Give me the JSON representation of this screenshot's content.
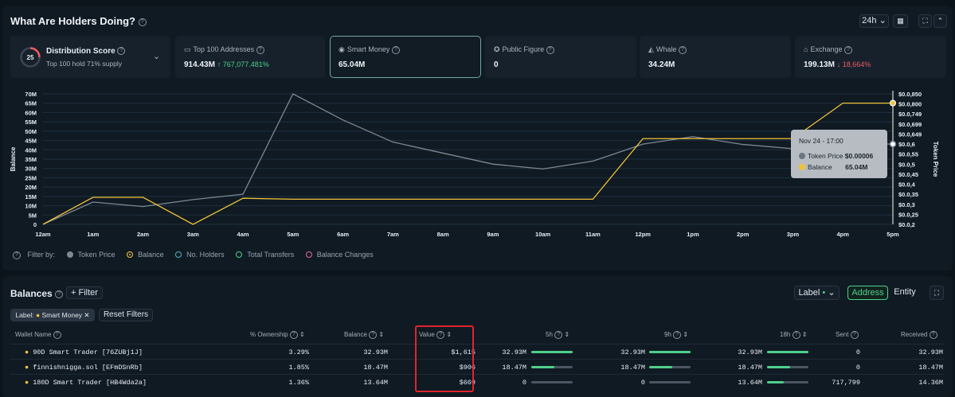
{
  "header": {
    "title": "What Are Holders Doing?",
    "interval": "24h"
  },
  "cards": [
    {
      "label": "Distribution Score",
      "sub": "Top 100 hold 71% supply",
      "score": "25"
    },
    {
      "label": "Top 100 Addresses",
      "value": "914.43M",
      "delta": "↑ 767,077.481%"
    },
    {
      "label": "Smart Money",
      "value": "65.04M"
    },
    {
      "label": "Public Figure",
      "value": "0"
    },
    {
      "label": "Whale",
      "value": "34.24M"
    },
    {
      "label": "Exchange",
      "value": "199.13M",
      "delta": "↓ 18,664%"
    }
  ],
  "chart_data": {
    "type": "line",
    "x": [
      "12am",
      "1am",
      "2am",
      "3am",
      "4am",
      "5am",
      "6am",
      "7am",
      "8am",
      "9am",
      "10am",
      "11am",
      "12pm",
      "1pm",
      "2pm",
      "3pm",
      "4pm",
      "5pm"
    ],
    "series": [
      {
        "name": "Token Price",
        "axis": "right",
        "values": [
          0.2,
          0.311,
          0.2888,
          0.3233,
          0.35,
          0.85,
          0.72,
          0.61,
          0.555,
          0.5,
          0.476,
          0.515,
          0.6,
          0.637,
          0.598,
          0.577,
          0.6,
          0.6
        ]
      },
      {
        "name": "Balance",
        "axis": "left",
        "values": [
          0,
          14.5,
          14.5,
          0,
          14,
          13.5,
          13.5,
          13.5,
          13.5,
          13.5,
          13.5,
          13.5,
          46,
          46,
          46,
          46,
          65.04,
          65.04
        ]
      }
    ],
    "ylabel": "Balance",
    "y2label": "Token Price",
    "yticks": [
      "70M",
      "65M",
      "60M",
      "55M",
      "50M",
      "45M",
      "40M",
      "35M",
      "30M",
      "25M",
      "20M",
      "15M",
      "10M",
      "5M",
      "0"
    ],
    "y2ticks": [
      "$0.0,850",
      "$0.0,800",
      "$0.0,749",
      "$0.0,699",
      "$0.0,649",
      "$0.0,6",
      "$0.0,55",
      "$0.0,5",
      "$0.0,45",
      "$0.0,4",
      "$0.0,35",
      "$0.0,3",
      "$0.0,25",
      "$0.0,2"
    ],
    "ylim": [
      0,
      70
    ],
    "y2lim": [
      0.2,
      0.85
    ],
    "tooltip": {
      "title": "Nov 24 - 17:00",
      "price_label": "Token Price",
      "price": "$0.00006",
      "balance_label": "Balance",
      "balance": "65.04M"
    }
  },
  "filters": {
    "label": "Filter by:",
    "items": [
      "Token Price",
      "Balance",
      "No. Holders",
      "Total Transfers",
      "Balance Changes"
    ]
  },
  "balances": {
    "title": "Balances",
    "filter_btn": "Filter",
    "label_dropdown": "Label",
    "address": "Address",
    "entity": "Entity",
    "chip_prefix": "Label:",
    "chip": "Smart Money",
    "reset": "Reset Filters",
    "columns": [
      "Wallet Name",
      "% Ownership",
      "Balance",
      "Value",
      "5h",
      "9h",
      "18h",
      "Sent",
      "Received"
    ],
    "rows": [
      {
        "wallet": "90D Smart Trader [76ZUBj1J]",
        "own": "3.29%",
        "bal": "32.93M",
        "value": "$1,615",
        "h5": "32.93M",
        "h5f": 1,
        "h9": "32.93M",
        "h9f": 1,
        "h18": "32.93M",
        "h18f": 1,
        "sent": "0",
        "recv": "32.93M"
      },
      {
        "wallet": "finnishnigga.sol [EFmDSnRb]",
        "own": "1.85%",
        "bal": "18.47M",
        "value": "$906",
        "h5": "18.47M",
        "h5f": 0.56,
        "h9": "18.47M",
        "h9f": 0.56,
        "h18": "18.47M",
        "h18f": 0.56,
        "sent": "0",
        "recv": "18.47M"
      },
      {
        "wallet": "180D Smart Trader [HB4Wda2a]",
        "own": "1.36%",
        "bal": "13.64M",
        "value": "$669",
        "h5": "0",
        "h5f": 0,
        "h9": "0",
        "h9f": 0,
        "h18": "13.64M",
        "h18f": 0.41,
        "sent": "717,799",
        "recv": "14.36M"
      }
    ]
  },
  "colors": {
    "price": "#7d8893",
    "balance": "#f0c23a",
    "accent": "#4ed08b",
    "highlight": "#e0242e"
  }
}
